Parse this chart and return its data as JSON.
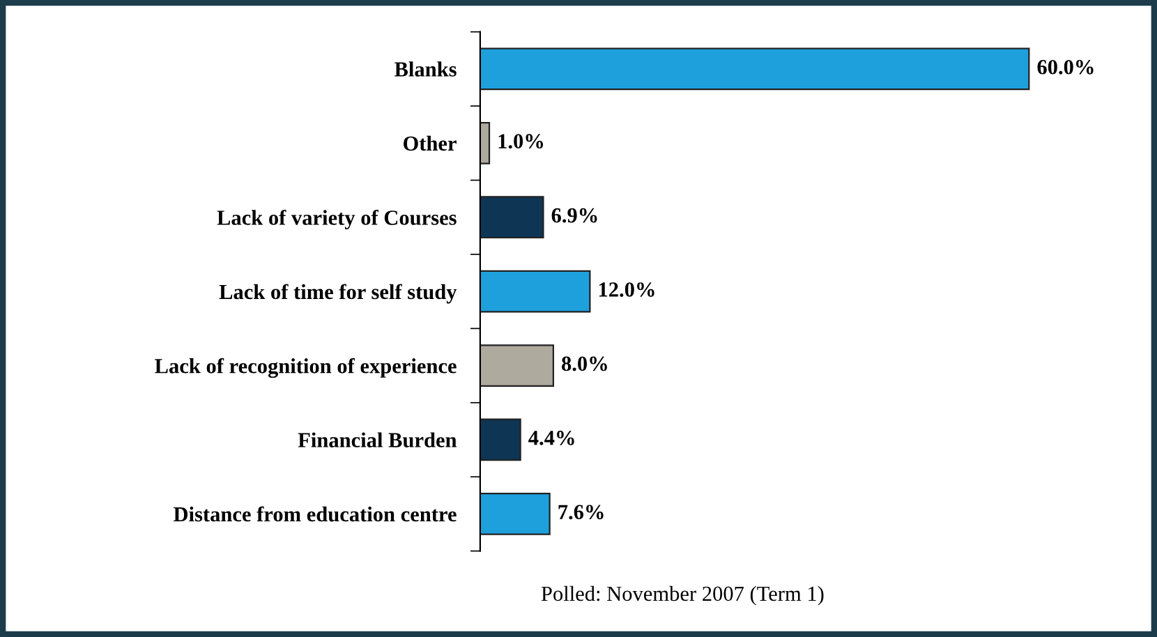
{
  "chart_data": {
    "type": "bar",
    "orientation": "horizontal",
    "categories": [
      "Blanks",
      "Other",
      "Lack of variety of Courses",
      "Lack of time for self study",
      "Lack of recognition of experience",
      "Financial Burden",
      "Distance from education centre"
    ],
    "values": [
      60.0,
      1.0,
      6.9,
      12.0,
      8.0,
      4.4,
      7.6
    ],
    "colors": [
      "#1ea0dc",
      "#aeaa9e",
      "#0e3553",
      "#1ea0dc",
      "#aeaa9e",
      "#0e3553",
      "#1ea0dc"
    ],
    "value_labels": [
      "60.0%",
      "1.0%",
      "6.9%",
      "12.0%",
      "8.0%",
      "4.4%",
      "7.6%"
    ],
    "annotations": [
      "Polled: November 2007 (Term 1)"
    ],
    "grid": false,
    "legend": false,
    "tick_labels": "y"
  }
}
